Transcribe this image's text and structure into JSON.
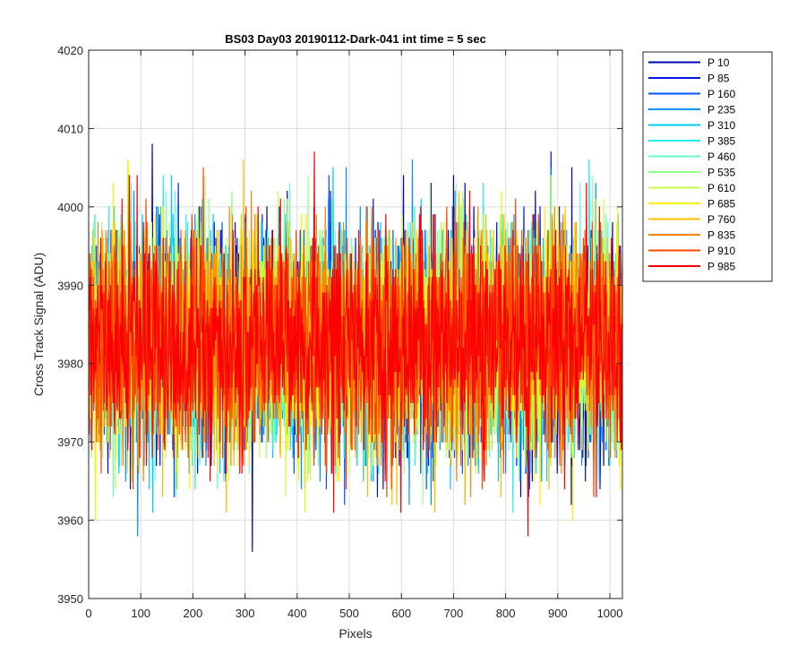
{
  "chart_data": {
    "type": "line",
    "title": "BS03 Day03 20190112-Dark-041 int time = 5 sec",
    "xlabel": "Pixels",
    "ylabel": "Cross Track Signal (ADU)",
    "xlim": [
      0,
      1024
    ],
    "ylim": [
      3950,
      4020
    ],
    "xticks": [
      0,
      100,
      200,
      300,
      400,
      500,
      600,
      700,
      800,
      900,
      1000
    ],
    "yticks": [
      3950,
      3960,
      3970,
      3980,
      3990,
      4000,
      4010,
      4020
    ],
    "grid": true,
    "legend_position": "outside-top-right",
    "noise_center": 3983,
    "noise_spread": 7,
    "series": [
      {
        "name": "P 10",
        "color": "#0000b4"
      },
      {
        "name": "P 85",
        "color": "#0014e6"
      },
      {
        "name": "P 160",
        "color": "#0050ff"
      },
      {
        "name": "P 235",
        "color": "#0090ff"
      },
      {
        "name": "P 310",
        "color": "#00c8ff"
      },
      {
        "name": "P 385",
        "color": "#1ef0f0"
      },
      {
        "name": "P 460",
        "color": "#64ffc8"
      },
      {
        "name": "P 535",
        "color": "#96ff96"
      },
      {
        "name": "P 610",
        "color": "#c8ff46"
      },
      {
        "name": "P 685",
        "color": "#f5f500"
      },
      {
        "name": "P 760",
        "color": "#ffbe00"
      },
      {
        "name": "P 835",
        "color": "#ff8200"
      },
      {
        "name": "P 910",
        "color": "#ff4600"
      },
      {
        "name": "P 985",
        "color": "#ff0000"
      }
    ]
  }
}
